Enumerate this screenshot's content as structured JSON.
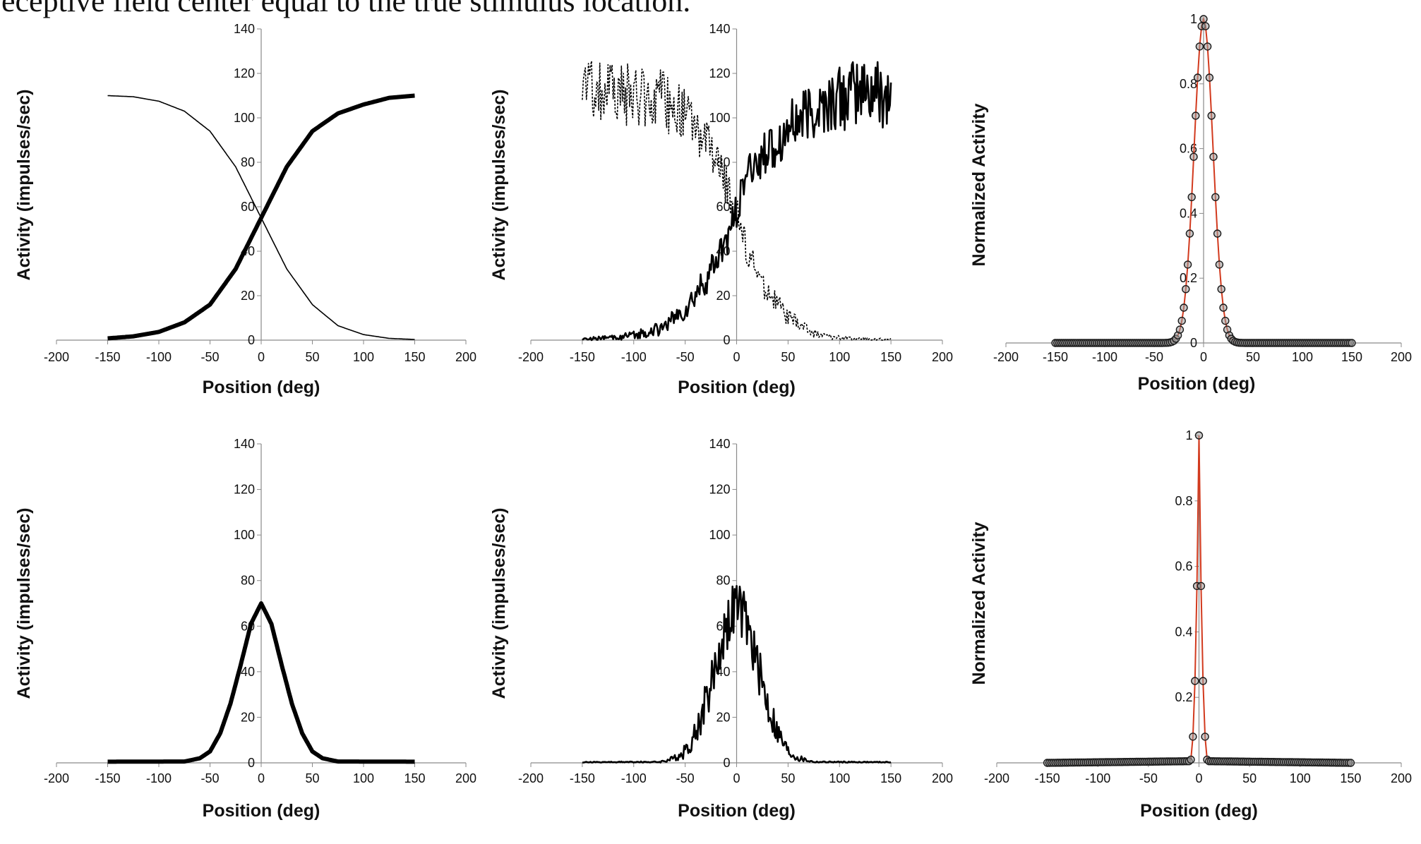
{
  "caption": "eceptive field center equal to the true stimulus location.",
  "chart_data": [
    {
      "type": "line",
      "panel": "top-left",
      "xlabel": "Position (deg)",
      "ylabel": "Activity (impulses/sec)",
      "xlim": [
        -200,
        200
      ],
      "ylim": [
        0,
        140
      ],
      "xticks": [
        "-200",
        "-150",
        "-100",
        "-50",
        "0",
        "50",
        "100",
        "150",
        "200"
      ],
      "yticks": [
        "0",
        "20",
        "40",
        "60",
        "80",
        "100",
        "120",
        "140"
      ],
      "series": [
        {
          "name": "increasing sigmoid (thick)",
          "style": "thick",
          "x": [
            -150,
            -125,
            -100,
            -75,
            -50,
            -25,
            0,
            25,
            50,
            75,
            100,
            125,
            150
          ],
          "y": [
            0.8,
            1.7,
            3.7,
            8,
            16,
            32,
            55,
            78,
            94,
            102,
            106,
            109,
            110
          ]
        },
        {
          "name": "decreasing sigmoid (thin)",
          "style": "thin",
          "x": [
            -150,
            -125,
            -100,
            -75,
            -50,
            -25,
            0,
            25,
            50,
            75,
            100,
            125,
            150
          ],
          "y": [
            110,
            109.5,
            107.5,
            103,
            94,
            78,
            55,
            32,
            16,
            6.5,
            2.5,
            0.8,
            0.3
          ]
        }
      ]
    },
    {
      "type": "line",
      "panel": "top-middle",
      "xlabel": "Position (deg)",
      "ylabel": "Activity (impulses/sec)",
      "xlim": [
        -200,
        200
      ],
      "ylim": [
        0,
        140
      ],
      "xticks": [
        "-200",
        "-150",
        "-100",
        "-50",
        "0",
        "50",
        "100",
        "150",
        "200"
      ],
      "yticks": [
        "0",
        "20",
        "40",
        "60",
        "80",
        "100",
        "120",
        "140"
      ],
      "series": [
        {
          "name": "noisy increasing (solid)",
          "style": "solid-noisy",
          "x": [
            -150,
            -125,
            -100,
            -75,
            -50,
            -25,
            -10,
            0,
            10,
            25,
            50,
            75,
            100,
            125,
            150
          ],
          "y": [
            0.5,
            1,
            2,
            5,
            13,
            30,
            45,
            58,
            75,
            82,
            95,
            103,
            108,
            112,
            110
          ],
          "noise_amplitude": [
            0.5,
            1,
            2,
            3,
            5,
            8,
            8,
            8,
            8,
            10,
            12,
            14,
            15,
            16,
            16
          ]
        },
        {
          "name": "noisy decreasing (dashed)",
          "style": "dashed-noisy",
          "x": [
            -150,
            -125,
            -100,
            -75,
            -50,
            -25,
            -10,
            0,
            10,
            25,
            50,
            75,
            100,
            125,
            150
          ],
          "y": [
            114,
            112,
            110,
            108,
            102,
            85,
            70,
            57,
            40,
            25,
            10,
            3,
            1,
            0.5,
            0.3
          ],
          "noise_amplitude": [
            14,
            15,
            14,
            14,
            12,
            10,
            9,
            8,
            7,
            6,
            4,
            2,
            1,
            0.5,
            0.5
          ]
        }
      ]
    },
    {
      "type": "scatter",
      "panel": "top-right",
      "xlabel": "Position (deg)",
      "ylabel": "Normalized Activity",
      "xlim": [
        -200,
        200
      ],
      "ylim": [
        0,
        1
      ],
      "xticks": [
        "-200",
        "-150",
        "-100",
        "-50",
        "0",
        "50",
        "100",
        "150",
        "200"
      ],
      "yticks": [
        "0",
        "0.2",
        "0.4",
        "0.6",
        "0.8",
        "1"
      ],
      "series": [
        {
          "name": "decoded distribution",
          "marker": "circle",
          "fit_line_color": "#d23a1e",
          "x_step": 2,
          "x_range": [
            -150,
            150
          ],
          "gaussian_sigma": 9.5,
          "peak": 1
        }
      ]
    },
    {
      "type": "line",
      "panel": "bottom-left",
      "xlabel": "Position (deg)",
      "ylabel": "Activity (impulses/sec)",
      "xlim": [
        -200,
        200
      ],
      "ylim": [
        0,
        140
      ],
      "xticks": [
        "-200",
        "-150",
        "-100",
        "-50",
        "0",
        "50",
        "100",
        "150",
        "200"
      ],
      "yticks": [
        "0",
        "20",
        "40",
        "60",
        "80",
        "100",
        "120",
        "140"
      ],
      "series": [
        {
          "name": "gaussian tuning curve",
          "style": "thick",
          "x": [
            -150,
            -75,
            -60,
            -50,
            -40,
            -30,
            -20,
            -10,
            0,
            10,
            20,
            30,
            40,
            50,
            60,
            75,
            150
          ],
          "y": [
            0.5,
            0.6,
            2,
            5,
            13,
            26,
            43,
            61,
            70,
            61,
            43,
            26,
            13,
            5,
            2,
            0.6,
            0.5
          ]
        }
      ]
    },
    {
      "type": "line",
      "panel": "bottom-middle",
      "xlabel": "Position (deg)",
      "ylabel": "Activity (impulses/sec)",
      "xlim": [
        -200,
        200
      ],
      "ylim": [
        0,
        140
      ],
      "xticks": [
        "-200",
        "-150",
        "-100",
        "-50",
        "0",
        "50",
        "100",
        "150",
        "200"
      ],
      "yticks": [
        "0",
        "20",
        "40",
        "60",
        "80",
        "100",
        "120",
        "140"
      ],
      "series": [
        {
          "name": "noisy gaussian tuning curve",
          "style": "solid-noisy",
          "x": [
            -150,
            -75,
            -60,
            -50,
            -40,
            -30,
            -20,
            -10,
            0,
            10,
            20,
            30,
            40,
            50,
            60,
            75,
            150
          ],
          "y": [
            0.3,
            0.4,
            2,
            5,
            13,
            26,
            43,
            61,
            70,
            61,
            43,
            26,
            13,
            5,
            2,
            0.4,
            0.3
          ],
          "noise_amplitude": [
            0.2,
            0.3,
            1.5,
            3,
            6,
            9,
            11,
            12,
            12,
            12,
            11,
            9,
            6,
            3,
            1.5,
            0.3,
            0.2
          ]
        }
      ]
    },
    {
      "type": "scatter",
      "panel": "bottom-right",
      "xlabel": "Position (deg)",
      "ylabel": "Normalized Activity",
      "xlim": [
        -200,
        200
      ],
      "ylim": [
        0,
        1
      ],
      "xticks": [
        "-200",
        "-150",
        "-100",
        "-50",
        "0",
        "50",
        "100",
        "150",
        "200"
      ],
      "yticks": [
        "0.2",
        "0.4",
        "0.6",
        "0.8",
        "1"
      ],
      "series": [
        {
          "name": "decoded distribution",
          "marker": "circle",
          "fit_line_color": "#d23a1e",
          "x": [
            -150,
            -10,
            -8,
            -6,
            -4,
            -2,
            0,
            2,
            4,
            6,
            8,
            10,
            150
          ],
          "y": [
            0,
            0.005,
            0.01,
            0.08,
            0.25,
            0.54,
            1,
            0.54,
            0.25,
            0.08,
            0.01,
            0.005,
            0
          ],
          "x_step": 2,
          "x_range": [
            -150,
            150
          ]
        }
      ]
    }
  ]
}
